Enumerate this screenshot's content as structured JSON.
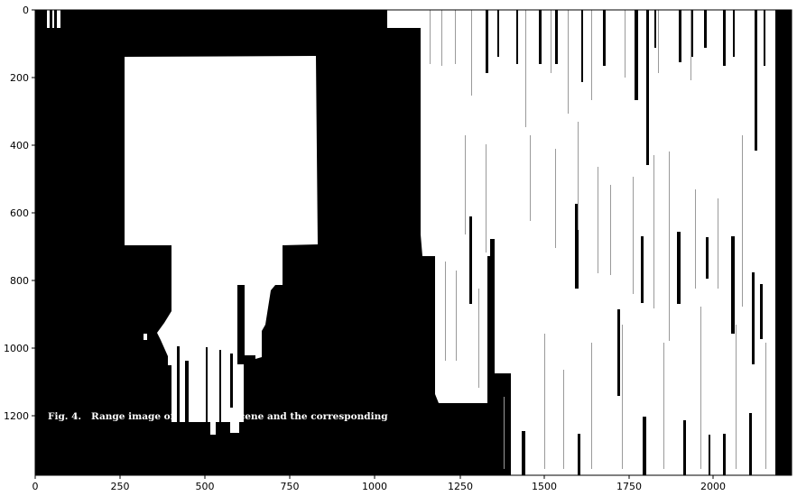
{
  "figure": {
    "caption": "Fig. 4.   Range image of                  scene and the corresponding",
    "colors": {
      "background": "#ffffff",
      "image_dark": "#000000",
      "image_light": "#ffffff",
      "axis": "#000000",
      "stripe_gray": "#9a9a9a"
    },
    "x_axis": {
      "ticks": [
        "0",
        "250",
        "500",
        "750",
        "1000",
        "1250",
        "1500",
        "1750",
        "2000"
      ]
    },
    "y_axis": {
      "ticks": [
        "0",
        "200",
        "400",
        "600",
        "800",
        "1000",
        "1200"
      ]
    }
  }
}
